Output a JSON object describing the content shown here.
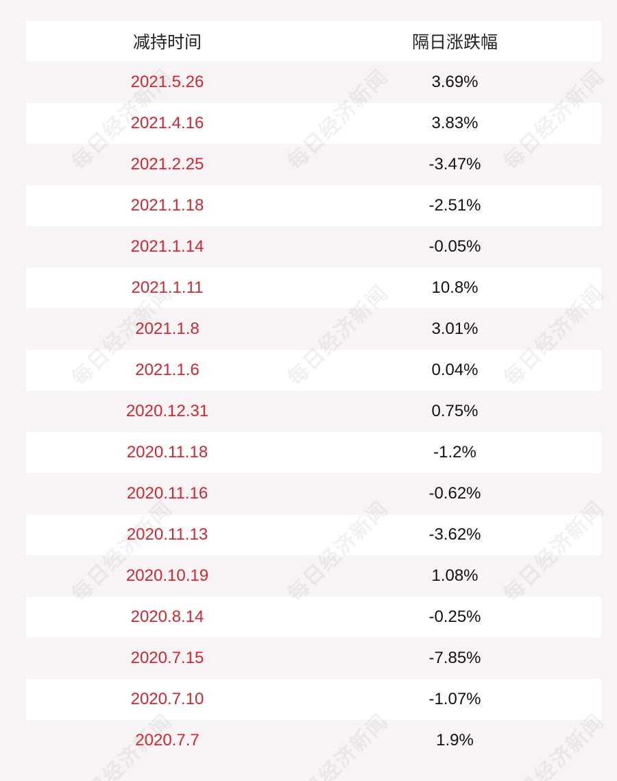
{
  "table": {
    "headers": {
      "date": "减持时间",
      "change": "隔日涨跌幅"
    },
    "rows": [
      {
        "date": "2021.5.26",
        "change": "3.69%"
      },
      {
        "date": "2021.4.16",
        "change": "3.83%"
      },
      {
        "date": "2021.2.25",
        "change": "-3.47%"
      },
      {
        "date": "2021.1.18",
        "change": "-2.51%"
      },
      {
        "date": "2021.1.14",
        "change": "-0.05%"
      },
      {
        "date": "2021.1.11",
        "change": "10.8%"
      },
      {
        "date": "2021.1.8",
        "change": "3.01%"
      },
      {
        "date": "2021.1.6",
        "change": "0.04%"
      },
      {
        "date": "2020.12.31",
        "change": "0.75%"
      },
      {
        "date": "2020.11.18",
        "change": "-1.2%"
      },
      {
        "date": "2020.11.16",
        "change": "-0.62%"
      },
      {
        "date": "2020.11.13",
        "change": "-3.62%"
      },
      {
        "date": "2020.10.19",
        "change": "1.08%"
      },
      {
        "date": "2020.8.14",
        "change": "-0.25%"
      },
      {
        "date": "2020.7.15",
        "change": "-7.85%"
      },
      {
        "date": "2020.7.10",
        "change": "-1.07%"
      },
      {
        "date": "2020.7.7",
        "change": "1.9%"
      }
    ]
  },
  "watermark": {
    "text": "每日经济新闻"
  },
  "colors": {
    "date_text": "#d22630",
    "stripe": "#f8f3f4"
  }
}
